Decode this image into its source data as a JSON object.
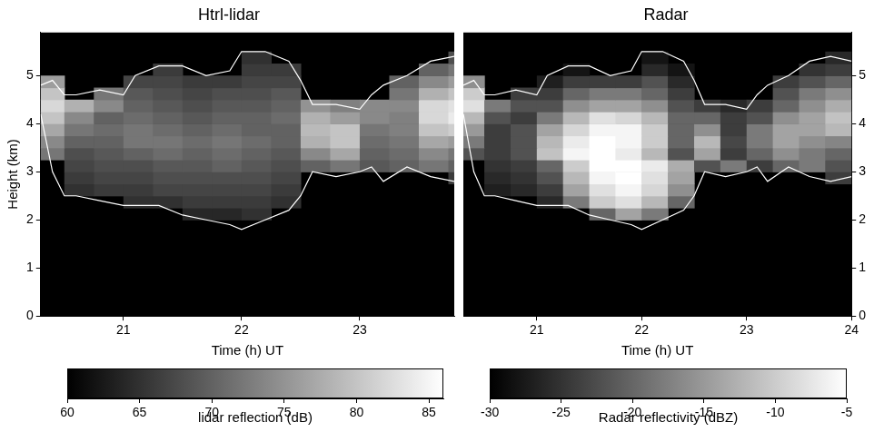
{
  "chart_data": [
    {
      "type": "heatmap",
      "title": "Htrl-lidar",
      "x_label": "Time (h) UT",
      "y_label": "Height (km)",
      "xlim": [
        20.3,
        23.8
      ],
      "xticks": [
        21,
        22,
        23
      ],
      "ylim": [
        0,
        5.9
      ],
      "yticks": [
        0,
        1,
        2,
        3,
        4,
        5
      ],
      "grid": false,
      "x": [
        20.375,
        20.625,
        20.875,
        21.125,
        21.375,
        21.625,
        21.875,
        22.125,
        22.375,
        22.625,
        22.875,
        23.125,
        23.375,
        23.625,
        23.875
      ],
      "y": [
        2.125,
        2.375,
        2.625,
        2.875,
        3.125,
        3.375,
        3.625,
        3.875,
        4.125,
        4.375,
        4.625,
        4.875,
        5.125,
        5.375
      ],
      "cells": [
        [
          null,
          null,
          null,
          null,
          null,
          64,
          64,
          65,
          null,
          null,
          null,
          null,
          null,
          null,
          null
        ],
        [
          null,
          null,
          null,
          65,
          65,
          66,
          66,
          66,
          65,
          null,
          null,
          null,
          null,
          null,
          null
        ],
        [
          null,
          65,
          66,
          66,
          67,
          67,
          67,
          67,
          66,
          null,
          null,
          null,
          null,
          null,
          null
        ],
        [
          null,
          66,
          67,
          67,
          68,
          68,
          68,
          68,
          67,
          null,
          null,
          null,
          null,
          null,
          66
        ],
        [
          null,
          67,
          68,
          68,
          69,
          69,
          70,
          69,
          68,
          70,
          72,
          69,
          70,
          72,
          70
        ],
        [
          72,
          68,
          69,
          70,
          71,
          70,
          71,
          70,
          69,
          74,
          77,
          70,
          71,
          74,
          72
        ],
        [
          74,
          70,
          70,
          72,
          72,
          71,
          72,
          71,
          70,
          78,
          80,
          71,
          72,
          77,
          76
        ],
        [
          77,
          72,
          71,
          72,
          71,
          70,
          71,
          70,
          70,
          79,
          80,
          72,
          73,
          80,
          81
        ],
        [
          80,
          74,
          70,
          71,
          70,
          69,
          70,
          70,
          71,
          78,
          76,
          74,
          73,
          82,
          84
        ],
        [
          82,
          78,
          74,
          70,
          69,
          68,
          69,
          69,
          70,
          75,
          73,
          74,
          74,
          82,
          83
        ],
        [
          80,
          null,
          72,
          69,
          68,
          67,
          68,
          68,
          69,
          null,
          null,
          null,
          72,
          78,
          80
        ],
        [
          76,
          null,
          null,
          67,
          67,
          66,
          66,
          67,
          67,
          null,
          null,
          null,
          70,
          74,
          76
        ],
        [
          null,
          null,
          null,
          null,
          66,
          null,
          null,
          66,
          66,
          null,
          null,
          null,
          null,
          70,
          72
        ],
        [
          null,
          null,
          null,
          null,
          null,
          null,
          null,
          65,
          null,
          null,
          null,
          null,
          null,
          null,
          68
        ]
      ],
      "colorbar_range": [
        60,
        86
      ],
      "colorbar_ticks": [
        60,
        65,
        70,
        75,
        80,
        85
      ],
      "colorbar_label": "lidar reflection (dB)",
      "series": [
        {
          "type": "line",
          "color": "#ffffff",
          "x": [
            20.3,
            20.4,
            20.5,
            20.6,
            20.8,
            21.0,
            21.1,
            21.3,
            21.5,
            21.7,
            21.9,
            22.0,
            22.2,
            22.4,
            22.5,
            22.6,
            22.8,
            23.0,
            23.1,
            23.2,
            23.4,
            23.6,
            23.8,
            24.0
          ],
          "values": [
            4.8,
            4.9,
            4.6,
            4.6,
            4.7,
            4.6,
            5.0,
            5.2,
            5.2,
            5.0,
            5.1,
            5.5,
            5.5,
            5.3,
            4.9,
            4.4,
            4.4,
            4.3,
            4.6,
            4.8,
            5.0,
            5.3,
            5.4,
            5.3
          ]
        },
        {
          "type": "line",
          "color": "#ffffff",
          "x": [
            20.3,
            20.4,
            20.5,
            20.6,
            20.8,
            21.0,
            21.1,
            21.3,
            21.5,
            21.7,
            21.9,
            22.0,
            22.2,
            22.4,
            22.5,
            22.6,
            22.8,
            23.0,
            23.1,
            23.2,
            23.4,
            23.6,
            23.8,
            24.0
          ],
          "values": [
            4.2,
            3.0,
            2.5,
            2.5,
            2.4,
            2.3,
            2.3,
            2.3,
            2.1,
            2.0,
            1.9,
            1.8,
            2.0,
            2.2,
            2.5,
            3.0,
            2.9,
            3.0,
            3.1,
            2.8,
            3.1,
            2.9,
            2.8,
            2.9
          ]
        }
      ]
    },
    {
      "type": "heatmap",
      "title": "Radar",
      "x_label": "Time (h) UT",
      "xlim": [
        20.3,
        24.0
      ],
      "xticks": [
        21,
        22,
        23,
        24
      ],
      "ylim": [
        0,
        5.9
      ],
      "yticks": [
        0,
        1,
        2,
        3,
        4,
        5
      ],
      "grid": false,
      "x": [
        20.375,
        20.625,
        20.875,
        21.125,
        21.375,
        21.625,
        21.875,
        22.125,
        22.375,
        22.625,
        22.875,
        23.125,
        23.375,
        23.625,
        23.875
      ],
      "y": [
        2.125,
        2.375,
        2.625,
        2.875,
        3.125,
        3.375,
        3.625,
        3.875,
        4.125,
        4.375,
        4.625,
        4.875,
        5.125,
        5.375
      ],
      "cells": [
        [
          null,
          null,
          null,
          null,
          null,
          -20,
          -14,
          -18,
          null,
          null,
          null,
          null,
          null,
          null,
          null
        ],
        [
          null,
          null,
          null,
          -26,
          -18,
          -10,
          -8,
          -12,
          -20,
          null,
          null,
          null,
          null,
          null,
          null
        ],
        [
          null,
          -27,
          -26,
          -24,
          -14,
          -8,
          -6,
          -9,
          -16,
          null,
          null,
          null,
          null,
          null,
          null
        ],
        [
          null,
          -26,
          -25,
          -22,
          -12,
          -6,
          -5,
          -8,
          -14,
          null,
          null,
          null,
          null,
          null,
          -24
        ],
        [
          null,
          -25,
          -24,
          -20,
          -10,
          -5,
          -5,
          -7,
          -13,
          -22,
          -18,
          -24,
          -20,
          -18,
          -22
        ],
        [
          -22,
          -24,
          -22,
          -11,
          -6,
          -5,
          -7,
          -12,
          -22,
          -14,
          -24,
          -20,
          -16,
          -18,
          -20
        ],
        [
          -18,
          -24,
          -22,
          -12,
          -7,
          -5,
          -6,
          -10,
          -20,
          -12,
          -23,
          -18,
          -14,
          -16,
          -17
        ],
        [
          -15,
          -24,
          -22,
          -14,
          -9,
          -6,
          -6,
          -10,
          -20,
          -16,
          -24,
          -18,
          -14,
          -14,
          -12
        ],
        [
          -12,
          -22,
          -24,
          -18,
          -12,
          -8,
          -9,
          -12,
          -20,
          -20,
          -24,
          -22,
          -16,
          -14,
          -11
        ],
        [
          -8,
          -18,
          -22,
          -22,
          -16,
          -14,
          -14,
          -16,
          -22,
          -24,
          -26,
          -24,
          -20,
          -16,
          -13
        ],
        [
          -10,
          null,
          -24,
          -24,
          -20,
          -18,
          -18,
          -20,
          -24,
          null,
          null,
          null,
          -22,
          -18,
          -16
        ],
        [
          -16,
          null,
          null,
          -27,
          -24,
          -24,
          -24,
          -22,
          -26,
          null,
          null,
          null,
          -24,
          -22,
          -20
        ],
        [
          null,
          null,
          null,
          null,
          -28,
          null,
          null,
          -26,
          -28,
          null,
          null,
          null,
          null,
          -25,
          -24
        ],
        [
          null,
          null,
          null,
          null,
          null,
          null,
          null,
          -28,
          null,
          null,
          null,
          null,
          null,
          null,
          -26
        ]
      ],
      "colorbar_range": [
        -30,
        -5
      ],
      "colorbar_ticks": [
        -30,
        -25,
        -20,
        -15,
        -10,
        -5
      ],
      "colorbar_label": "Radar reflectivity (dBZ)",
      "series": [
        {
          "type": "line",
          "color": "#ffffff",
          "x": [
            20.3,
            20.4,
            20.5,
            20.6,
            20.8,
            21.0,
            21.1,
            21.3,
            21.5,
            21.7,
            21.9,
            22.0,
            22.2,
            22.4,
            22.5,
            22.6,
            22.8,
            23.0,
            23.1,
            23.2,
            23.4,
            23.6,
            23.8,
            24.0
          ],
          "values": [
            4.8,
            4.9,
            4.6,
            4.6,
            4.7,
            4.6,
            5.0,
            5.2,
            5.2,
            5.0,
            5.1,
            5.5,
            5.5,
            5.3,
            4.9,
            4.4,
            4.4,
            4.3,
            4.6,
            4.8,
            5.0,
            5.3,
            5.4,
            5.3
          ]
        },
        {
          "type": "line",
          "color": "#ffffff",
          "x": [
            20.3,
            20.4,
            20.5,
            20.6,
            20.8,
            21.0,
            21.1,
            21.3,
            21.5,
            21.7,
            21.9,
            22.0,
            22.2,
            22.4,
            22.5,
            22.6,
            22.8,
            23.0,
            23.1,
            23.2,
            23.4,
            23.6,
            23.8,
            24.0
          ],
          "values": [
            4.2,
            3.0,
            2.5,
            2.5,
            2.4,
            2.3,
            2.3,
            2.3,
            2.1,
            2.0,
            1.9,
            1.8,
            2.0,
            2.2,
            2.5,
            3.0,
            2.9,
            3.0,
            3.1,
            2.8,
            3.1,
            2.9,
            2.8,
            2.9
          ]
        }
      ]
    }
  ]
}
